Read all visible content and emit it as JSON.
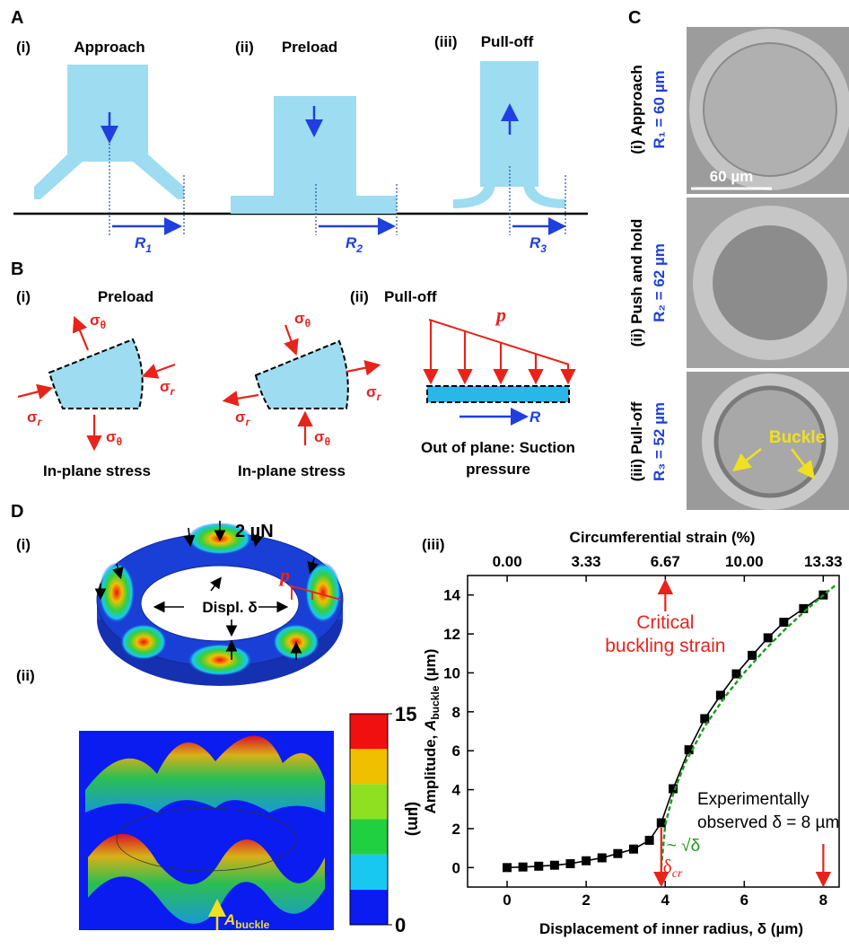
{
  "panel_a": {
    "label": "A",
    "steps": [
      {
        "num": "(i)",
        "title": "Approach",
        "radius": "R",
        "index": "1"
      },
      {
        "num": "(ii)",
        "title": "Preload",
        "radius": "R",
        "index": "2"
      },
      {
        "num": "(iii)",
        "title": "Pull-off",
        "radius": "R",
        "index": "3"
      }
    ]
  },
  "panel_b": {
    "label": "B",
    "left": {
      "num": "(i)",
      "title": "Preload"
    },
    "right": {
      "num": "(ii)",
      "title": "Pull-off"
    },
    "sigma": "σ",
    "theta": "θ",
    "r": "r",
    "in_plane": "In-plane stress",
    "pressure": "p",
    "radius": "R",
    "out_of_plane": [
      "Out of plane: Suction",
      "pressure"
    ]
  },
  "panel_c": {
    "label": "C",
    "rows": [
      {
        "title": "(i) Approach",
        "radius": "R₁ = 60 µm"
      },
      {
        "title": "(ii) Push and hold",
        "radius": "R₂ = 62 µm"
      },
      {
        "title": "(iii) Pull-off",
        "radius": "R₃ = 52 µm"
      }
    ],
    "scale_bar": "60 µm",
    "buckle": "Buckle"
  },
  "panel_d": {
    "label": "D",
    "sub_i": {
      "num": "(i)",
      "force": "2 µN",
      "displacement": "Displ. δ",
      "pressure": "p"
    },
    "sub_ii": {
      "num": "(ii)",
      "amplitude": {
        "symbol": "A",
        "subscript": "buckle"
      },
      "colorbar": {
        "lim": [
          0,
          15
        ],
        "ticks": [
          0,
          15
        ],
        "label": "(µm)",
        "colors": [
          "#0a1cf0",
          "#18c8f0",
          "#20d040",
          "#8ee020",
          "#f0c000",
          "#f01010"
        ]
      }
    }
  },
  "chart_data": {
    "type": "line",
    "label": "(iii)",
    "xlabel": "Displacement of inner radius, δ (µm)",
    "x2label": "Circumferential strain (%)",
    "ylabel": {
      "prefix": "Amplitude, ",
      "symbol": "A",
      "subscript": "buckle",
      "suffix": " (µm)"
    },
    "xlim": [
      -1,
      8.4
    ],
    "xticks": [
      0,
      2,
      4,
      6,
      8
    ],
    "x2lim": [
      -1.67,
      14
    ],
    "x2ticks": [
      {
        "value": 0,
        "label": "0.00"
      },
      3.33,
      6.67,
      {
        "value": 10,
        "label": "10.00"
      },
      13.33
    ],
    "ylim": [
      -1,
      15
    ],
    "yticks": [
      0,
      2,
      4,
      6,
      8,
      10,
      12,
      14
    ],
    "series": [
      {
        "color": "#000000",
        "marker": "square",
        "dash": false,
        "x": [
          0,
          0.4,
          0.8,
          1.2,
          1.6,
          2.0,
          2.4,
          2.8,
          3.2,
          3.6,
          3.9,
          4.2,
          4.6,
          5.0,
          5.4,
          5.8,
          6.2,
          6.6,
          7.0,
          7.5,
          8.0
        ],
        "values": [
          0,
          0.03,
          0.07,
          0.12,
          0.2,
          0.35,
          0.5,
          0.72,
          0.95,
          1.4,
          2.3,
          4.05,
          6.05,
          7.65,
          8.85,
          9.95,
          10.9,
          11.8,
          12.6,
          13.3,
          14.0
        ]
      },
      {
        "color": "#1a9a1a",
        "marker": "none",
        "dash": true,
        "x": [
          3.9,
          4.0,
          4.2,
          4.5,
          5.0,
          5.5,
          6.0,
          6.5,
          7.0,
          7.5,
          8.0,
          8.3
        ],
        "values": [
          0,
          2.19,
          3.78,
          5.35,
          7.25,
          8.74,
          10.01,
          11.14,
          12.17,
          13.11,
          13.99,
          14.49
        ]
      }
    ],
    "annotations": {
      "critical": [
        "Critical",
        "buckling strain"
      ],
      "observed": [
        "Experimentally",
        "observed δ = 8 µm"
      ],
      "fit": "~ √δ",
      "onset": {
        "symbol": "δ",
        "subscript": "cr"
      }
    }
  }
}
